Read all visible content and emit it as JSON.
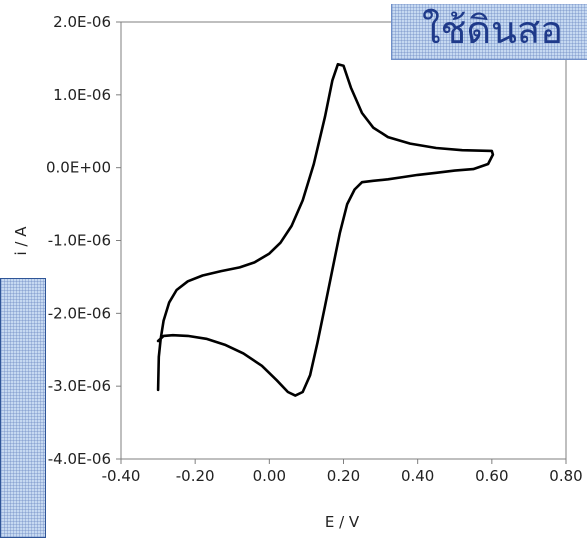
{
  "overlay": {
    "text": "ใช้ดินสอ"
  },
  "chart_data": {
    "type": "line",
    "title": "",
    "xlabel": "E / V",
    "ylabel": "i / A",
    "xlim": [
      -0.4,
      0.8
    ],
    "ylim": [
      -4e-06,
      2e-06
    ],
    "x_ticks": [
      -0.4,
      -0.2,
      0.0,
      0.2,
      0.4,
      0.6,
      0.8
    ],
    "x_tick_labels": [
      "-0.40",
      "-0.20",
      "0.00",
      "0.20",
      "0.40",
      "0.60",
      "0.80"
    ],
    "y_ticks": [
      2e-06,
      1e-06,
      0.0,
      -1e-06,
      -2e-06,
      -3e-06,
      -4e-06
    ],
    "y_tick_labels": [
      "2.0E-06",
      "1.0E-06",
      "0.0E+00",
      "-1.0E-06",
      "-2.0E-06",
      "-3.0E-06",
      "-4.0E-06"
    ],
    "grid": false,
    "series": [
      {
        "color": "#000000",
        "points": [
          [
            -0.3,
            -3.05e-06
          ],
          [
            -0.298,
            -2.6e-06
          ],
          [
            -0.293,
            -2.35e-06
          ],
          [
            -0.285,
            -2.1e-06
          ],
          [
            -0.27,
            -1.85e-06
          ],
          [
            -0.25,
            -1.68e-06
          ],
          [
            -0.22,
            -1.56e-06
          ],
          [
            -0.18,
            -1.48e-06
          ],
          [
            -0.13,
            -1.42e-06
          ],
          [
            -0.08,
            -1.37e-06
          ],
          [
            -0.04,
            -1.3e-06
          ],
          [
            0.0,
            -1.18e-06
          ],
          [
            0.03,
            -1.03e-06
          ],
          [
            0.06,
            -8e-07
          ],
          [
            0.09,
            -4.5e-07
          ],
          [
            0.12,
            5e-08
          ],
          [
            0.15,
            7e-07
          ],
          [
            0.17,
            1.2e-06
          ],
          [
            0.185,
            1.42e-06
          ],
          [
            0.2,
            1.4e-06
          ],
          [
            0.22,
            1.1e-06
          ],
          [
            0.25,
            7.5e-07
          ],
          [
            0.28,
            5.5e-07
          ],
          [
            0.32,
            4.2e-07
          ],
          [
            0.38,
            3.3e-07
          ],
          [
            0.45,
            2.7e-07
          ],
          [
            0.52,
            2.4e-07
          ],
          [
            0.6,
            2.3e-07
          ],
          [
            0.603,
            1.8e-07
          ],
          [
            0.59,
            5e-08
          ],
          [
            0.55,
            -2e-08
          ],
          [
            0.5,
            -4e-08
          ],
          [
            0.45,
            -7e-08
          ],
          [
            0.4,
            -1e-07
          ],
          [
            0.36,
            -1.3e-07
          ],
          [
            0.32,
            -1.6e-07
          ],
          [
            0.28,
            -1.8e-07
          ],
          [
            0.25,
            -2e-07
          ],
          [
            0.23,
            -3e-07
          ],
          [
            0.21,
            -5e-07
          ],
          [
            0.19,
            -9e-07
          ],
          [
            0.17,
            -1.4e-06
          ],
          [
            0.15,
            -1.9e-06
          ],
          [
            0.13,
            -2.4e-06
          ],
          [
            0.11,
            -2.85e-06
          ],
          [
            0.09,
            -3.08e-06
          ],
          [
            0.07,
            -3.13e-06
          ],
          [
            0.05,
            -3.08e-06
          ],
          [
            0.02,
            -2.92e-06
          ],
          [
            -0.02,
            -2.72e-06
          ],
          [
            -0.07,
            -2.55e-06
          ],
          [
            -0.12,
            -2.43e-06
          ],
          [
            -0.17,
            -2.35e-06
          ],
          [
            -0.22,
            -2.31e-06
          ],
          [
            -0.26,
            -2.3e-06
          ],
          [
            -0.285,
            -2.31e-06
          ],
          [
            -0.3,
            -2.38e-06
          ]
        ]
      }
    ]
  }
}
